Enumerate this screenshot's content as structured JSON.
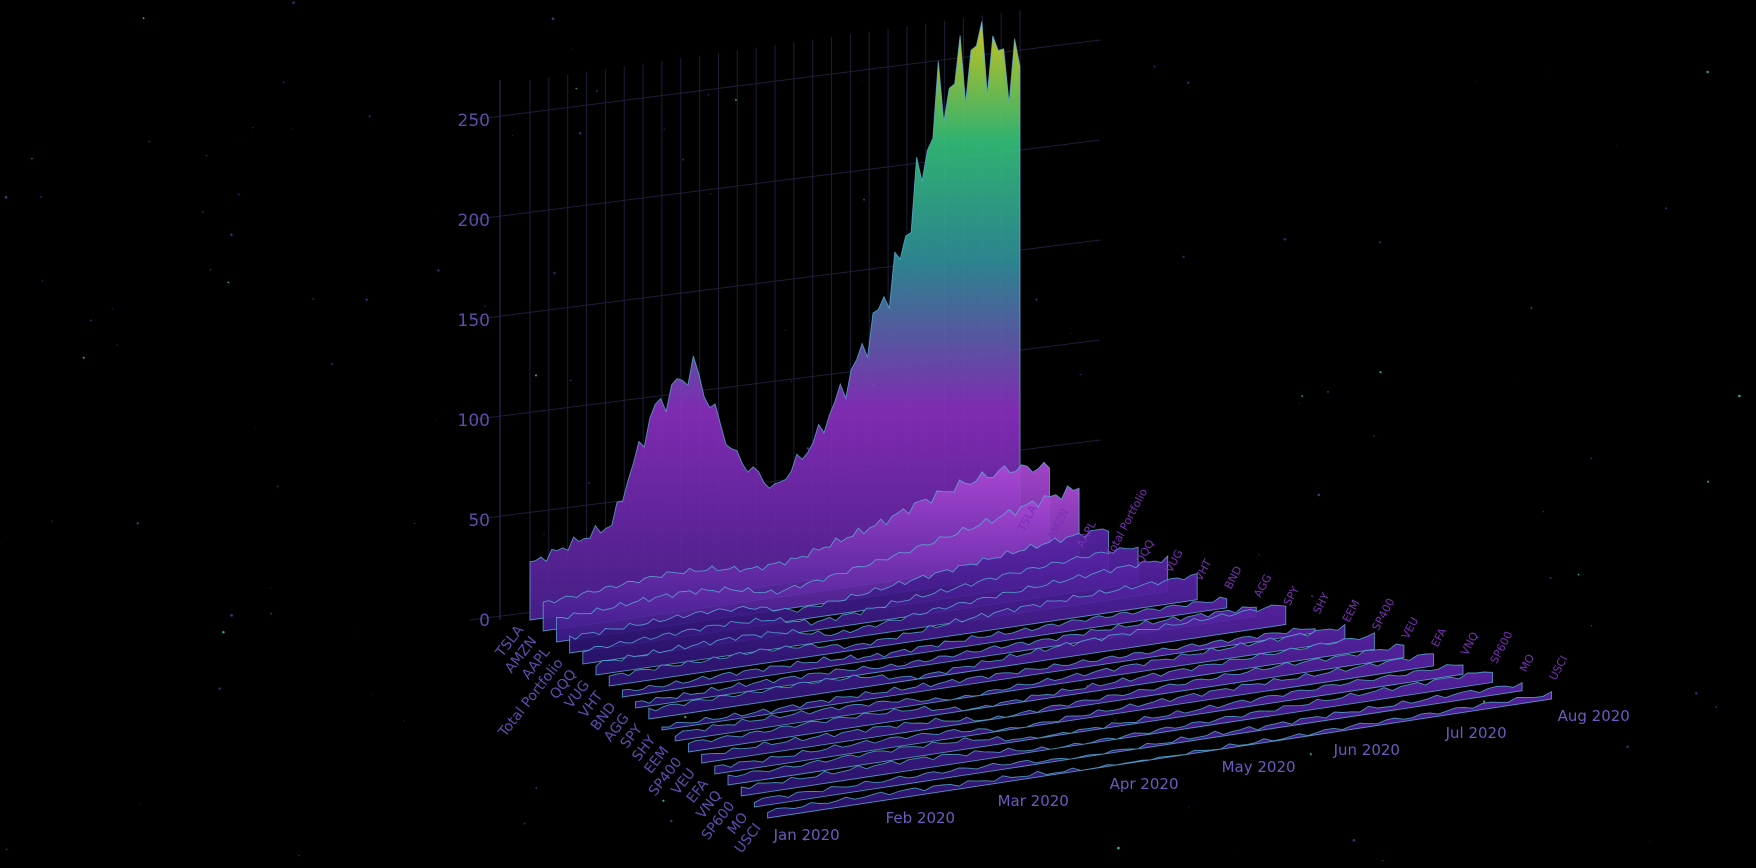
{
  "chart_data": {
    "type": "area",
    "style": "3d-ribbon",
    "background": "#000000",
    "colorscale": [
      "#3b1b8c",
      "#7a1fb0",
      "#b04ad8",
      "#2f8f9a",
      "#34c07a",
      "#d9d21f"
    ],
    "grid": true,
    "z_ticks": [
      "0",
      "50",
      "100",
      "150",
      "200",
      "250"
    ],
    "z_range": [
      0,
      270
    ],
    "x_ticks": [
      "Jan 2020",
      "Feb 2020",
      "Mar 2020",
      "Apr 2020",
      "May 2020",
      "Jun 2020",
      "Jul 2020",
      "Aug 2020"
    ],
    "series": [
      {
        "name": "TSLA",
        "values": [
          28,
          35,
          42,
          95,
          115,
          68,
          48,
          70,
          105,
          150,
          230,
          255,
          240
        ]
      },
      {
        "name": "AMZN",
        "values": [
          14,
          16,
          18,
          20,
          19,
          16,
          18,
          24,
          30,
          38,
          44,
          48,
          46
        ]
      },
      {
        "name": "AAPL",
        "values": [
          12,
          13,
          15,
          16,
          14,
          9,
          12,
          16,
          20,
          25,
          30,
          36,
          40
        ]
      },
      {
        "name": "Total Portfolio",
        "values": [
          8,
          9,
          10,
          11,
          10,
          5,
          7,
          10,
          13,
          16,
          19,
          22,
          24
        ]
      },
      {
        "name": "QQQ",
        "values": [
          7,
          8,
          9,
          10,
          9,
          4,
          6,
          9,
          11,
          14,
          16,
          18,
          19
        ]
      },
      {
        "name": "VUG",
        "values": [
          6,
          7,
          8,
          9,
          8,
          3,
          5,
          8,
          10,
          12,
          14,
          16,
          17
        ]
      },
      {
        "name": "VHT",
        "values": [
          5,
          6,
          6,
          7,
          6,
          2,
          4,
          7,
          9,
          10,
          11,
          12,
          13
        ]
      },
      {
        "name": "BND",
        "values": [
          3,
          3,
          4,
          4,
          4,
          2,
          3,
          4,
          4,
          5,
          5,
          5,
          5
        ]
      },
      {
        "name": "AGG",
        "values": [
          3,
          3,
          4,
          4,
          4,
          2,
          3,
          4,
          4,
          5,
          5,
          5,
          5
        ]
      },
      {
        "name": "SPY",
        "values": [
          5,
          6,
          6,
          7,
          6,
          1,
          3,
          5,
          7,
          8,
          9,
          10,
          11
        ]
      },
      {
        "name": "SHY",
        "values": [
          2,
          2,
          2,
          3,
          3,
          3,
          3,
          3,
          3,
          3,
          3,
          3,
          3
        ]
      },
      {
        "name": "EEM",
        "values": [
          4,
          5,
          5,
          5,
          4,
          0,
          2,
          3,
          4,
          5,
          6,
          7,
          8
        ]
      },
      {
        "name": "SP400",
        "values": [
          5,
          5,
          6,
          6,
          5,
          0,
          2,
          3,
          4,
          5,
          6,
          7,
          8
        ]
      },
      {
        "name": "VEU",
        "values": [
          4,
          5,
          5,
          5,
          4,
          0,
          2,
          3,
          4,
          5,
          6,
          6,
          7
        ]
      },
      {
        "name": "EFA",
        "values": [
          4,
          4,
          5,
          5,
          4,
          0,
          2,
          3,
          4,
          5,
          5,
          6,
          7
        ]
      },
      {
        "name": "VNQ",
        "values": [
          5,
          5,
          6,
          6,
          5,
          0,
          1,
          2,
          3,
          4,
          5,
          5,
          6
        ]
      },
      {
        "name": "SP600",
        "values": [
          5,
          5,
          6,
          6,
          4,
          0,
          1,
          2,
          3,
          4,
          5,
          6,
          7
        ]
      },
      {
        "name": "MO",
        "values": [
          4,
          4,
          4,
          4,
          3,
          0,
          1,
          2,
          2,
          3,
          3,
          4,
          4
        ]
      },
      {
        "name": "USCI",
        "values": [
          4,
          4,
          4,
          3,
          2,
          0,
          0,
          1,
          1,
          2,
          2,
          3,
          3
        ]
      }
    ]
  }
}
